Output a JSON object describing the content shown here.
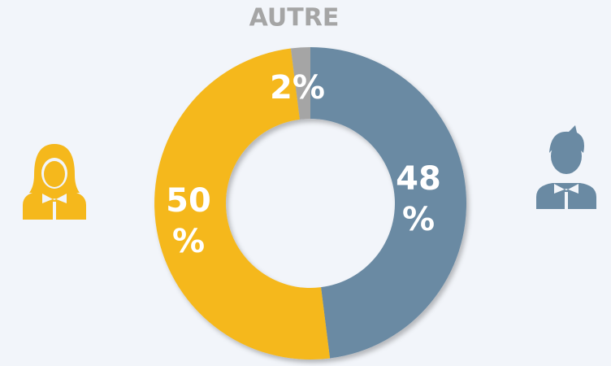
{
  "chart_data": {
    "type": "donut",
    "categories": [
      null,
      null,
      "AUTRE"
    ],
    "values": [
      48,
      50,
      2
    ],
    "value_labels": [
      "48 %",
      "50 %",
      "2%"
    ],
    "colors": [
      "#6a8aa3",
      "#f5b81c",
      "#a5a5a5"
    ]
  }
}
